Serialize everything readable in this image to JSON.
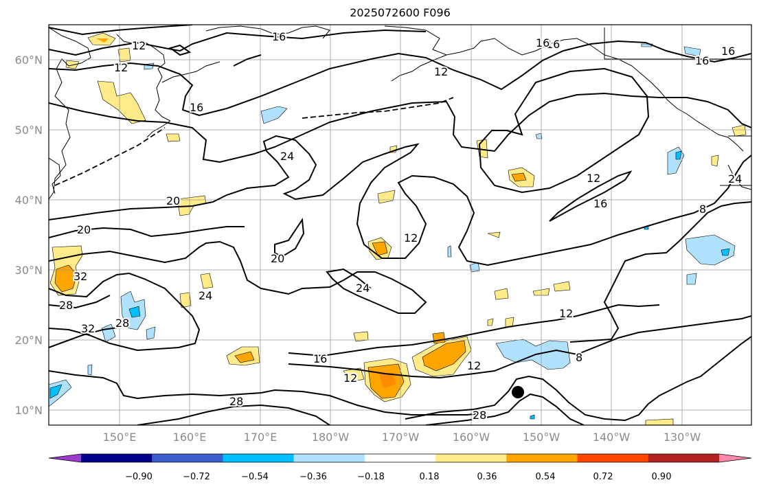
{
  "title": "2025072600 F096",
  "lat_labels": [
    "60°N",
    "50°N",
    "40°N",
    "30°N",
    "20°N",
    "10°N"
  ],
  "lon_labels": [
    "150°E",
    "160°E",
    "170°E",
    "180°W",
    "170°W",
    "160°W",
    "150°W",
    "140°W",
    "130°W"
  ],
  "contour_labels": [
    "12",
    "16",
    "12",
    "12",
    "16",
    "16",
    "16",
    "24",
    "20",
    "20",
    "20",
    "12",
    "16",
    "12",
    "8",
    "12",
    "24",
    "24",
    "32",
    "28",
    "32",
    "28",
    "24",
    "16",
    "12",
    "12",
    "28",
    "28",
    "8",
    "16",
    "16"
  ],
  "colorbar": {
    "ticks": [
      "−0.90",
      "−0.72",
      "−0.54",
      "−0.36",
      "−0.18",
      "0.18",
      "0.36",
      "0.54",
      "0.72",
      "0.90"
    ],
    "colors": [
      "#9b3ccf",
      "#00008b",
      "#3a5fcd",
      "#00bfff",
      "#b0e2ff",
      "#ffffff",
      "#ffeb8a",
      "#ffa500",
      "#ff4500",
      "#b22222",
      "#ff88aa"
    ]
  },
  "storm_marker": "tropical-cyclone-position"
}
